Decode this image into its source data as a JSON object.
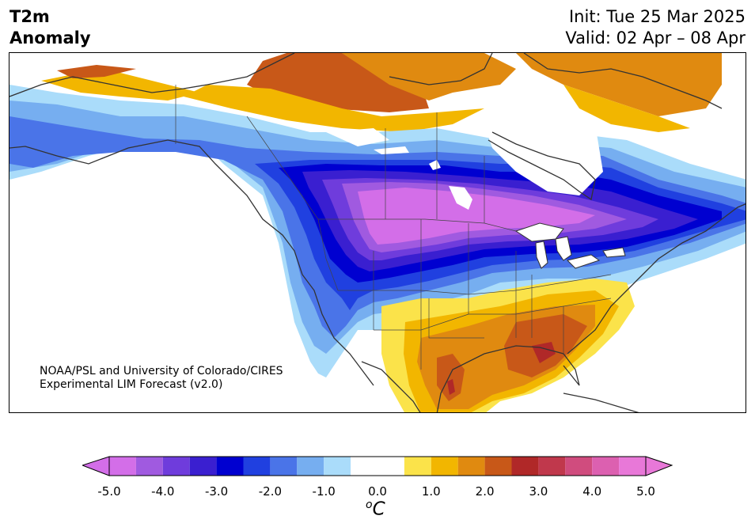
{
  "header": {
    "title_line1": "T2m",
    "title_line2": "Anomaly",
    "init": "Init: Tue 25 Mar 2025",
    "valid": "Valid: 02 Apr – 08 Apr"
  },
  "credit": {
    "line1": "NOAA/PSL and University of Colorado/CIRES",
    "line2": "Experimental LIM Forecast (v2.0)"
  },
  "colorbar": {
    "unit_base": "C",
    "unit_sup": "o",
    "ticks": [
      "-5.0",
      "-4.0",
      "-3.0",
      "-2.0",
      "-1.0",
      "0.0",
      "1.0",
      "2.0",
      "3.0",
      "4.0",
      "5.0"
    ],
    "bins": [
      {
        "from": -5.0,
        "to": -4.5,
        "color": "#d36ee8"
      },
      {
        "from": -4.5,
        "to": -4.0,
        "color": "#a05ae0"
      },
      {
        "from": -4.0,
        "to": -3.5,
        "color": "#6f3cdc"
      },
      {
        "from": -3.5,
        "to": -3.0,
        "color": "#3a1fd0"
      },
      {
        "from": -3.0,
        "to": -2.5,
        "color": "#0000d0"
      },
      {
        "from": -2.5,
        "to": -2.0,
        "color": "#2040e0"
      },
      {
        "from": -2.0,
        "to": -1.5,
        "color": "#4a74e8"
      },
      {
        "from": -1.5,
        "to": -1.0,
        "color": "#76aef0"
      },
      {
        "from": -1.0,
        "to": -0.5,
        "color": "#aadcfa"
      },
      {
        "from": -0.5,
        "to": 0.5,
        "color": "#ffffff"
      },
      {
        "from": 0.5,
        "to": 1.0,
        "color": "#fbe34a"
      },
      {
        "from": 1.0,
        "to": 1.5,
        "color": "#f2b600"
      },
      {
        "from": 1.5,
        "to": 2.0,
        "color": "#e08a10"
      },
      {
        "from": 2.0,
        "to": 2.5,
        "color": "#c85818"
      },
      {
        "from": 2.5,
        "to": 3.0,
        "color": "#b02828"
      },
      {
        "from": 3.0,
        "to": 3.5,
        "color": "#c0384c"
      },
      {
        "from": 3.5,
        "to": 4.0,
        "color": "#d04c7e"
      },
      {
        "from": 4.0,
        "to": 4.5,
        "color": "#dc60b0"
      },
      {
        "from": 4.5,
        "to": 5.0,
        "color": "#e878d8"
      }
    ],
    "extend_low_color": "#d36ee8",
    "extend_high_color": "#e878d8"
  },
  "map": {
    "projection": "lambert-conformal",
    "region": "North America",
    "field": "2-m temperature anomaly",
    "overlays": [
      "coastlines",
      "country-borders",
      "state-province-borders"
    ]
  }
}
